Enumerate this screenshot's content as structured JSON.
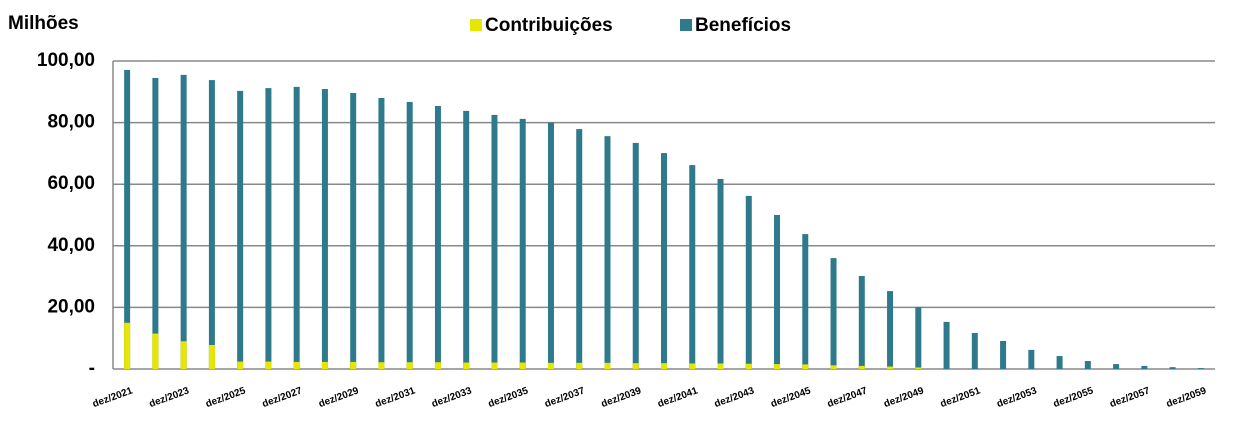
{
  "chart_data": {
    "type": "bar",
    "y_label": "Milhões",
    "categories": [
      "dez/2021",
      null,
      "dez/2023",
      null,
      "dez/2025",
      null,
      "dez/2027",
      null,
      "dez/2029",
      null,
      "dez/2031",
      null,
      "dez/2033",
      null,
      "dez/2035",
      null,
      "dez/2037",
      null,
      "dez/2039",
      null,
      "dez/2041",
      null,
      "dez/2043",
      null,
      "dez/2045",
      null,
      "dez/2047",
      null,
      "dez/2049",
      null,
      "dez/2051",
      null,
      "dez/2053",
      null,
      "dez/2055",
      null,
      "dez/2057",
      null,
      "dez/2059"
    ],
    "series": [
      {
        "name": "Contribuições",
        "color": "#e6e600",
        "values": [
          15,
          11.5,
          9,
          7.8,
          2.4,
          2.4,
          2.3,
          2.3,
          2.3,
          2.2,
          2.2,
          2.2,
          2.1,
          2.1,
          2.1,
          2,
          2,
          2,
          1.9,
          1.9,
          1.8,
          1.8,
          1.7,
          1.6,
          1.5,
          1.2,
          1,
          0.8,
          0.5,
          0,
          0,
          0,
          0,
          0,
          0,
          0,
          0,
          0,
          0
        ]
      },
      {
        "name": "Benefícios",
        "color": "#2e7a8c",
        "values": [
          97.1,
          94.5,
          95.5,
          93.8,
          90.3,
          91.2,
          91.6,
          90.9,
          89.6,
          88,
          86.7,
          85.4,
          83.8,
          82.5,
          81.2,
          80,
          77.9,
          75.6,
          73.4,
          70.1,
          66.2,
          61.7,
          56.2,
          50,
          43.8,
          36,
          30.2,
          25.3,
          20.1,
          15.3,
          11.7,
          9.1,
          6.2,
          4.2,
          2.6,
          1.6,
          1,
          0.6,
          0.3
        ]
      }
    ],
    "ylim": [
      0,
      100
    ],
    "yticks": [
      {
        "value": 0,
        "label": "-"
      },
      {
        "value": 20,
        "label": "20,00"
      },
      {
        "value": 40,
        "label": "40,00"
      },
      {
        "value": 60,
        "label": "60,00"
      },
      {
        "value": 80,
        "label": "80,00"
      },
      {
        "value": 100,
        "label": "100,00"
      }
    ],
    "grid": true,
    "legend": "top"
  }
}
